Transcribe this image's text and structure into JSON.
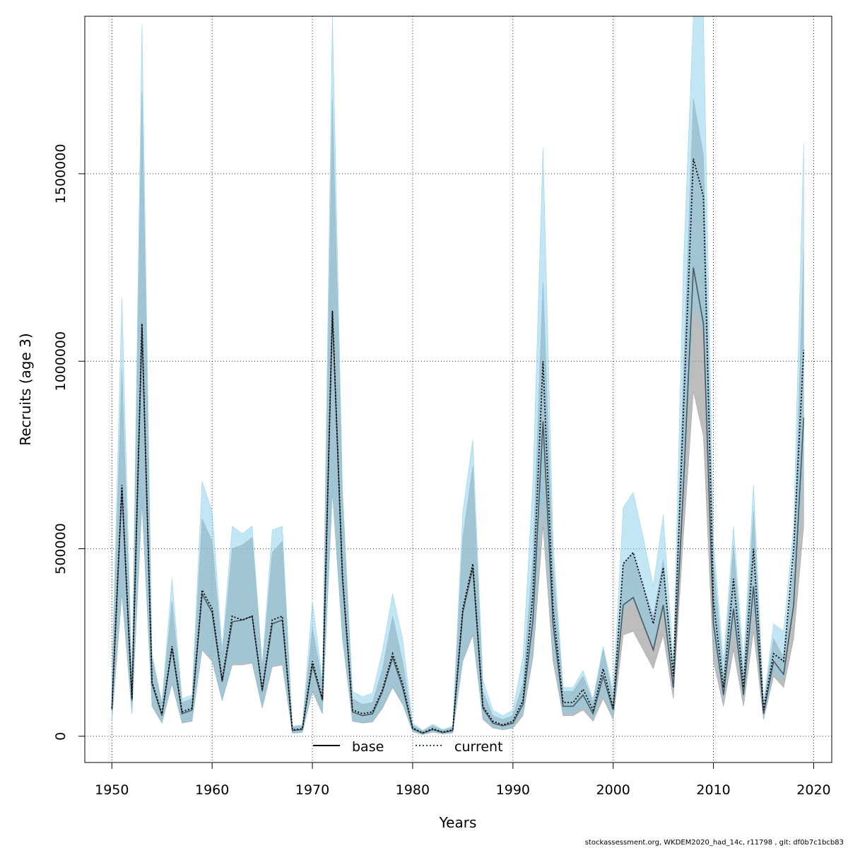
{
  "chart_data": {
    "type": "line",
    "title": "",
    "xlabel": "Years",
    "ylabel": "Recruits (age 3)",
    "xlim": [
      1947.3,
      2021.8
    ],
    "ylim": [
      -70000,
      1920000
    ],
    "xticks": [
      1950,
      1960,
      1970,
      1980,
      1990,
      2000,
      2010,
      2020
    ],
    "xtick_labels": [
      "1950",
      "1960",
      "1970",
      "1980",
      "1990",
      "2000",
      "2010",
      "2020"
    ],
    "yticks": [
      0,
      500000,
      1000000,
      1500000
    ],
    "ytick_labels": [
      "0",
      "500000",
      "1000000",
      "1500000"
    ],
    "grid": true,
    "legend_position": "bottom-center",
    "colors": {
      "base_line": "#000000",
      "base_band": "#999999",
      "current_line": "#1f4e79",
      "current_band": "#87ceeb"
    },
    "x": [
      1950,
      1951,
      1952,
      1953,
      1954,
      1955,
      1956,
      1957,
      1958,
      1959,
      1960,
      1961,
      1962,
      1963,
      1964,
      1965,
      1966,
      1967,
      1968,
      1969,
      1970,
      1971,
      1972,
      1973,
      1974,
      1975,
      1976,
      1977,
      1978,
      1979,
      1980,
      1981,
      1982,
      1983,
      1984,
      1985,
      1986,
      1987,
      1988,
      1989,
      1990,
      1991,
      1992,
      1993,
      1994,
      1995,
      1996,
      1997,
      1998,
      1999,
      2000,
      2001,
      2002,
      2003,
      2004,
      2005,
      2006,
      2007,
      2008,
      2009,
      2010,
      2011,
      2012,
      2013,
      2014,
      2015,
      2016,
      2017,
      2018,
      2019
    ],
    "series": [
      {
        "name": "base",
        "style": "solid",
        "values": [
          70000,
          660000,
          95000,
          1090000,
          140000,
          55000,
          235000,
          60000,
          70000,
          380000,
          330000,
          145000,
          305000,
          310000,
          320000,
          120000,
          300000,
          310000,
          15000,
          18000,
          190000,
          95000,
          1130000,
          420000,
          65000,
          55000,
          60000,
          120000,
          210000,
          130000,
          20000,
          8000,
          18000,
          10000,
          15000,
          330000,
          450000,
          75000,
          35000,
          28000,
          35000,
          85000,
          310000,
          840000,
          300000,
          80000,
          80000,
          110000,
          60000,
          160000,
          70000,
          350000,
          370000,
          300000,
          230000,
          350000,
          130000,
          660000,
          1250000,
          1100000,
          300000,
          110000,
          340000,
          110000,
          400000,
          60000,
          200000,
          165000,
          350000,
          850000
        ],
        "lower": [
          40000,
          380000,
          60000,
          620000,
          80000,
          35000,
          140000,
          35000,
          40000,
          230000,
          200000,
          95000,
          190000,
          190000,
          195000,
          75000,
          185000,
          190000,
          8000,
          10000,
          120000,
          60000,
          650000,
          260000,
          40000,
          35000,
          38000,
          75000,
          130000,
          85000,
          12000,
          4000,
          11000,
          6000,
          9000,
          200000,
          270000,
          45000,
          22000,
          17000,
          22000,
          55000,
          210000,
          560000,
          200000,
          55000,
          55000,
          70000,
          40000,
          100000,
          45000,
          270000,
          280000,
          230000,
          180000,
          270000,
          100000,
          530000,
          920000,
          800000,
          200000,
          80000,
          230000,
          80000,
          280000,
          45000,
          160000,
          130000,
          260000,
          560000
        ],
        "upper": [
          140000,
          980000,
          145000,
          1720000,
          210000,
          85000,
          360000,
          90000,
          100000,
          580000,
          520000,
          215000,
          500000,
          510000,
          530000,
          180000,
          490000,
          520000,
          25000,
          28000,
          290000,
          140000,
          1700000,
          640000,
          100000,
          85000,
          90000,
          180000,
          320000,
          200000,
          30000,
          14000,
          28000,
          16000,
          24000,
          530000,
          720000,
          120000,
          55000,
          45000,
          55000,
          140000,
          480000,
          1210000,
          460000,
          120000,
          120000,
          160000,
          90000,
          230000,
          105000,
          460000,
          490000,
          400000,
          320000,
          470000,
          180000,
          960000,
          1700000,
          1550000,
          470000,
          160000,
          510000,
          160000,
          600000,
          85000,
          260000,
          210000,
          450000,
          1300000
        ]
      },
      {
        "name": "current",
        "style": "dotted",
        "values": [
          75000,
          670000,
          100000,
          1100000,
          145000,
          60000,
          240000,
          65000,
          75000,
          390000,
          340000,
          150000,
          320000,
          310000,
          320000,
          125000,
          310000,
          320000,
          17000,
          20000,
          200000,
          100000,
          1135000,
          430000,
          70000,
          60000,
          65000,
          125000,
          220000,
          140000,
          22000,
          9000,
          20000,
          11000,
          17000,
          340000,
          460000,
          80000,
          40000,
          30000,
          40000,
          95000,
          380000,
          1000000,
          340000,
          90000,
          90000,
          125000,
          70000,
          180000,
          75000,
          460000,
          490000,
          400000,
          300000,
          450000,
          160000,
          860000,
          1540000,
          1440000,
          360000,
          130000,
          420000,
          130000,
          500000,
          70000,
          220000,
          200000,
          500000,
          1030000
        ],
        "lower": [
          42000,
          390000,
          62000,
          630000,
          85000,
          37000,
          145000,
          37000,
          42000,
          235000,
          205000,
          98000,
          195000,
          195000,
          200000,
          78000,
          190000,
          195000,
          9000,
          11000,
          125000,
          63000,
          660000,
          265000,
          42000,
          37000,
          40000,
          78000,
          135000,
          88000,
          13000,
          4500,
          12000,
          6500,
          10000,
          205000,
          280000,
          48000,
          24000,
          18000,
          24000,
          60000,
          240000,
          650000,
          230000,
          60000,
          60000,
          80000,
          45000,
          115000,
          50000,
          340000,
          360000,
          300000,
          230000,
          340000,
          120000,
          650000,
          1150000,
          1080000,
          260000,
          95000,
          300000,
          95000,
          350000,
          52000,
          170000,
          150000,
          360000,
          720000
        ],
        "upper": [
          145000,
          1170000,
          150000,
          1900000,
          220000,
          90000,
          420000,
          100000,
          110000,
          680000,
          600000,
          235000,
          560000,
          540000,
          560000,
          190000,
          550000,
          560000,
          27000,
          30000,
          360000,
          150000,
          1920000,
          660000,
          120000,
          105000,
          115000,
          230000,
          380000,
          260000,
          35000,
          16000,
          32000,
          18000,
          27000,
          600000,
          790000,
          150000,
          70000,
          55000,
          70000,
          210000,
          680000,
          1570000,
          520000,
          130000,
          130000,
          175000,
          100000,
          240000,
          120000,
          610000,
          650000,
          530000,
          400000,
          590000,
          200000,
          1250000,
          1920000,
          1920000,
          520000,
          200000,
          560000,
          200000,
          670000,
          90000,
          300000,
          280000,
          560000,
          1580000
        ]
      }
    ],
    "legend": [
      "base",
      "current"
    ]
  },
  "footer": "stockassessment.org, WKDEM2020_had_14c, r11798 , git: df0b7c1bcb83"
}
